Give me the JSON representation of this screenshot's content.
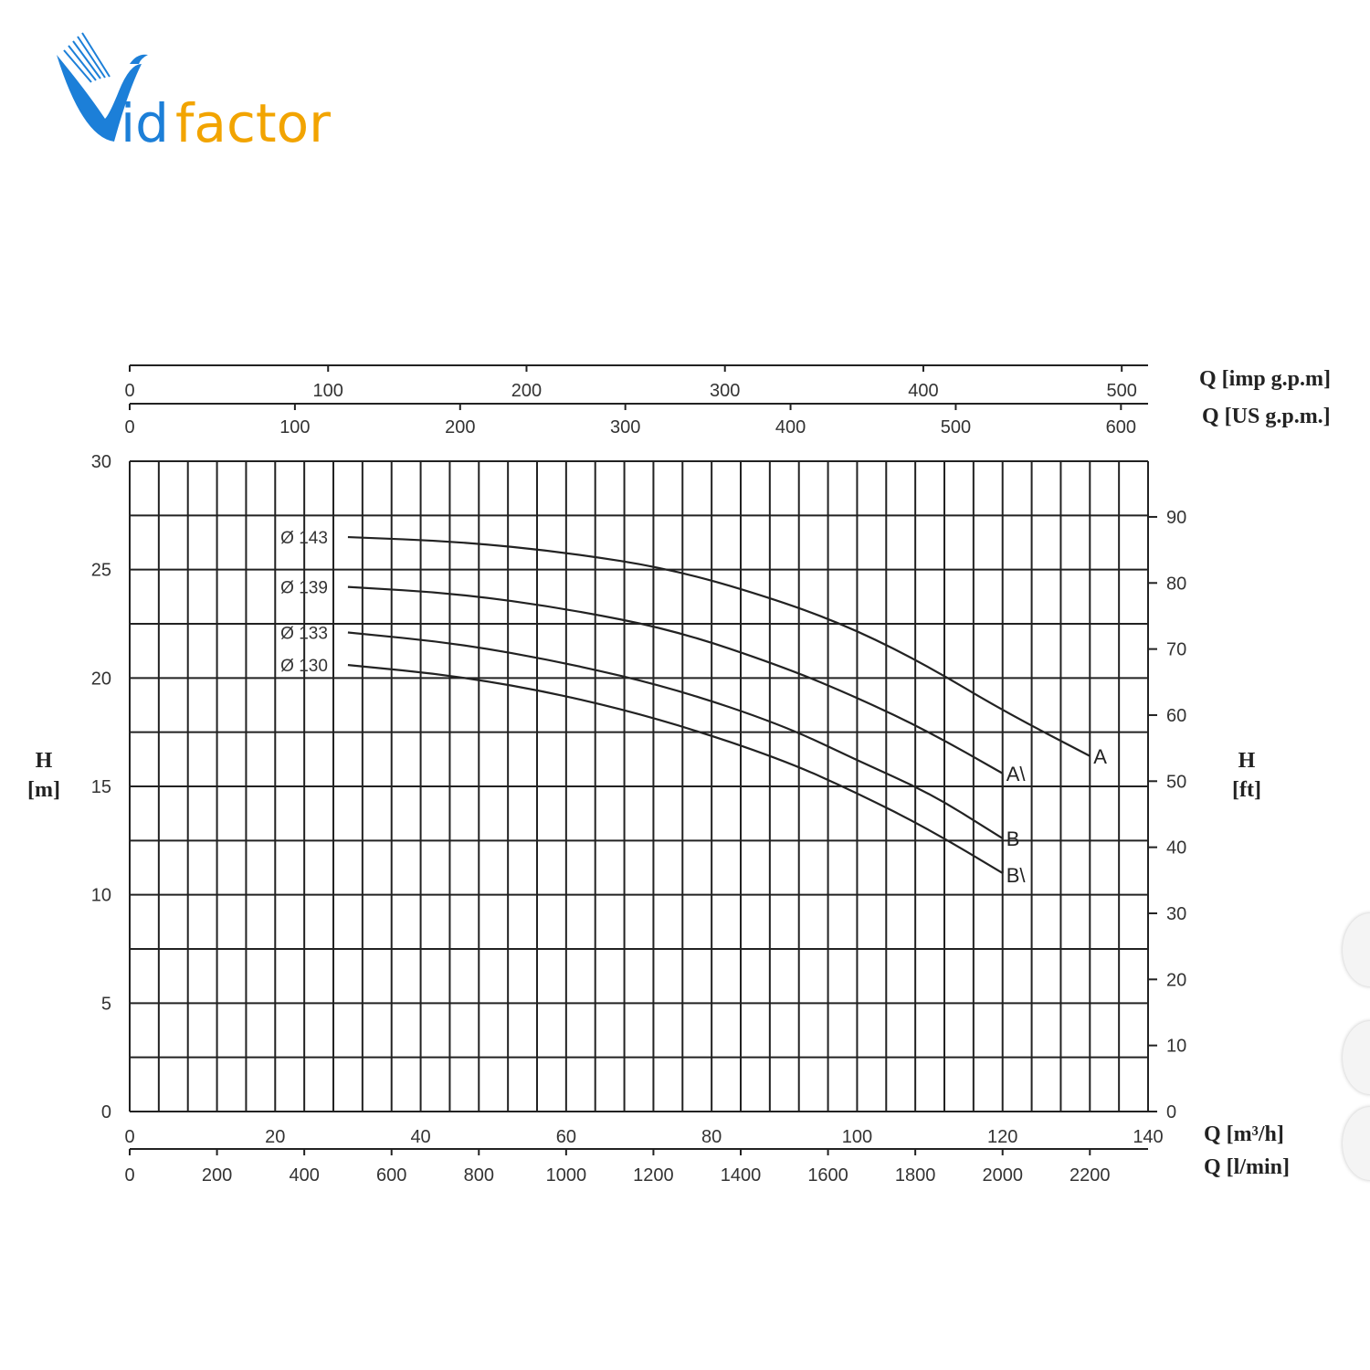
{
  "logo": {
    "text_v": "V",
    "text_id": "id",
    "text_factor": "factor",
    "blue": "#1c7fd8",
    "orange": "#f2a400"
  },
  "chart_data": {
    "type": "line",
    "title": "",
    "y_axis_left": {
      "label_line1": "H",
      "label_line2": "[m]",
      "ylim": [
        0,
        30
      ],
      "ticks": [
        "0",
        "5",
        "10",
        "15",
        "20",
        "25",
        "30"
      ]
    },
    "y_axis_right": {
      "label_line1": "H",
      "label_line2": "[ft]",
      "ticks": [
        "0",
        "10",
        "20",
        "30",
        "40",
        "50",
        "60",
        "70",
        "80",
        "90"
      ]
    },
    "x_axis_m3h": {
      "label": "Q [m³/h]",
      "xlim": [
        0,
        140
      ],
      "ticks": [
        "0",
        "20",
        "40",
        "60",
        "80",
        "100",
        "120",
        "140"
      ]
    },
    "x_axis_lmin": {
      "label": "Q [l/min]",
      "ticks": [
        "0",
        "200",
        "400",
        "600",
        "800",
        "1000",
        "1200",
        "1400",
        "1600",
        "1800",
        "2000",
        "2200"
      ]
    },
    "x_axis_us_gpm": {
      "label": "Q [US g.p.m.]",
      "ticks": [
        "0",
        "100",
        "200",
        "300",
        "400",
        "500",
        "600"
      ]
    },
    "x_axis_imp_gpm": {
      "label": "Q [imp g.p.m]",
      "ticks": [
        "0",
        "100",
        "200",
        "300",
        "400",
        "500"
      ]
    },
    "grid": true,
    "series": [
      {
        "name": "Ø 143",
        "end_label": "A",
        "end_label_color": "#e02020",
        "x": [
          30,
          45,
          60,
          75,
          90,
          100,
          110,
          120,
          132
        ],
        "y": [
          26.5,
          26.3,
          25.8,
          25.0,
          23.5,
          22.2,
          20.5,
          18.5,
          16.4
        ]
      },
      {
        "name": "Ø 139",
        "end_label": "A\\",
        "end_label_color": "#222222",
        "x": [
          30,
          45,
          60,
          75,
          90,
          100,
          110,
          120
        ],
        "y": [
          24.2,
          23.9,
          23.2,
          22.2,
          20.5,
          19.1,
          17.5,
          15.6
        ]
      },
      {
        "name": "Ø 133",
        "end_label": "B",
        "end_label_color": "#222222",
        "x": [
          30,
          45,
          60,
          75,
          90,
          100,
          110,
          120
        ],
        "y": [
          22.1,
          21.6,
          20.7,
          19.5,
          17.8,
          16.2,
          14.7,
          12.6
        ]
      },
      {
        "name": "Ø 130",
        "end_label": "B\\",
        "end_label_color": "#222222",
        "x": [
          30,
          45,
          60,
          75,
          90,
          100,
          110,
          120
        ],
        "y": [
          20.6,
          20.1,
          19.2,
          17.9,
          16.2,
          14.7,
          13.0,
          11.0
        ]
      }
    ]
  }
}
